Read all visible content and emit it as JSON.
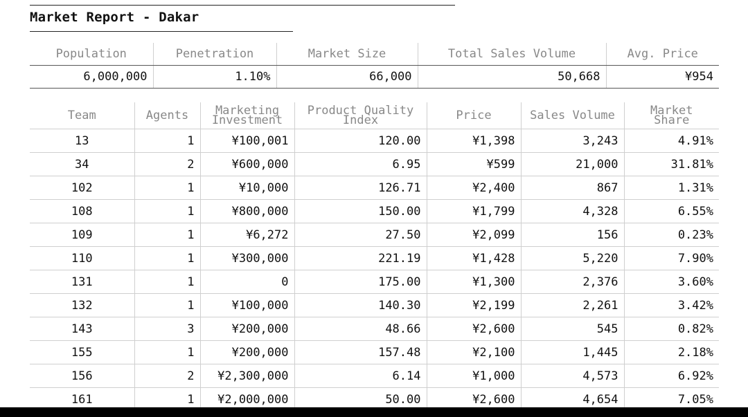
{
  "report": {
    "title": "Market Report - Dakar"
  },
  "summary": {
    "headers": [
      "Population",
      "Penetration",
      "Market Size",
      "Total Sales Volume",
      "Avg. Price"
    ],
    "values": [
      "6,000,000",
      "1.10%",
      "66,000",
      "50,668",
      "¥954"
    ]
  },
  "teams": {
    "headers": [
      "Team",
      "Agents",
      "Marketing Investment",
      "Product Quality Index",
      "Price",
      "Sales Volume",
      "Market Share"
    ],
    "rows": [
      [
        "13",
        "1",
        "¥100,001",
        "120.00",
        "¥1,398",
        "3,243",
        "4.91%"
      ],
      [
        "34",
        "2",
        "¥600,000",
        "6.95",
        "¥599",
        "21,000",
        "31.81%"
      ],
      [
        "102",
        "1",
        "¥10,000",
        "126.71",
        "¥2,400",
        "867",
        "1.31%"
      ],
      [
        "108",
        "1",
        "¥800,000",
        "150.00",
        "¥1,799",
        "4,328",
        "6.55%"
      ],
      [
        "109",
        "1",
        "¥6,272",
        "27.50",
        "¥2,099",
        "156",
        "0.23%"
      ],
      [
        "110",
        "1",
        "¥300,000",
        "221.19",
        "¥1,428",
        "5,220",
        "7.90%"
      ],
      [
        "131",
        "1",
        "0",
        "175.00",
        "¥1,300",
        "2,376",
        "3.60%"
      ],
      [
        "132",
        "1",
        "¥100,000",
        "140.30",
        "¥2,199",
        "2,261",
        "3.42%"
      ],
      [
        "143",
        "3",
        "¥200,000",
        "48.66",
        "¥2,600",
        "545",
        "0.82%"
      ],
      [
        "155",
        "1",
        "¥200,000",
        "157.48",
        "¥2,100",
        "1,445",
        "2.18%"
      ],
      [
        "156",
        "2",
        "¥2,300,000",
        "6.14",
        "¥1,000",
        "4,573",
        "6.92%"
      ],
      [
        "161",
        "1",
        "¥2,000,000",
        "50.00",
        "¥2,600",
        "4,654",
        "7.05%"
      ]
    ]
  }
}
